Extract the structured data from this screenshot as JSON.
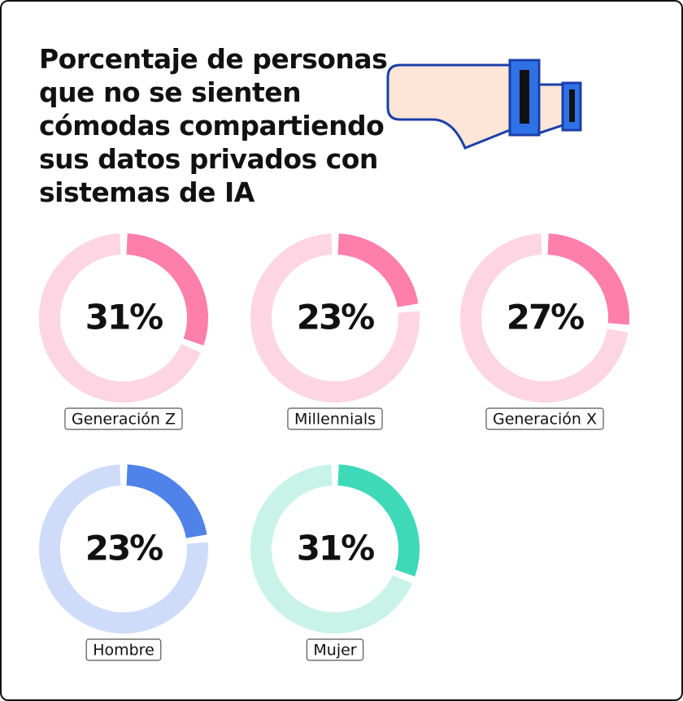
{
  "title": "Porcentaje de personas\nque no se sienten\ncómodas compartiendo\nsus datos privados con\nsistemas de IA",
  "chart_data": [
    {
      "type": "donut",
      "categories": [
        "Generación Z"
      ],
      "values": [
        31
      ],
      "value_labels": [
        "31%"
      ],
      "color": "#ff7fab",
      "track_color": "#fdd5e3"
    },
    {
      "type": "donut",
      "categories": [
        "Millennials"
      ],
      "values": [
        23
      ],
      "value_labels": [
        "23%"
      ],
      "color": "#ff7fab",
      "track_color": "#fdd5e3"
    },
    {
      "type": "donut",
      "categories": [
        "Generación X"
      ],
      "values": [
        27
      ],
      "value_labels": [
        "27%"
      ],
      "color": "#ff7fab",
      "track_color": "#fdd5e3"
    },
    {
      "type": "donut",
      "categories": [
        "Hombre"
      ],
      "values": [
        23
      ],
      "value_labels": [
        "23%"
      ],
      "color": "#4f83ea",
      "track_color": "#cfdcf9"
    },
    {
      "type": "donut",
      "categories": [
        "Mujer"
      ],
      "values": [
        31
      ],
      "value_labels": [
        "31%"
      ],
      "color": "#3dd9b8",
      "track_color": "#c9f3e8"
    }
  ]
}
